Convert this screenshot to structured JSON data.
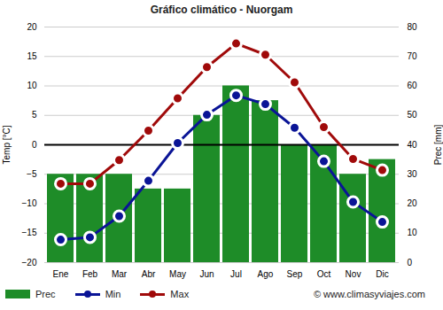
{
  "chart_data": {
    "type": "bar",
    "title": "Gráfico climático - Nuorgam",
    "categories": [
      "Ene",
      "Feb",
      "Mar",
      "Abr",
      "May",
      "Jun",
      "Jul",
      "Ago",
      "Sep",
      "Oct",
      "Nov",
      "Dic"
    ],
    "series": [
      {
        "name": "Prec",
        "type": "bar",
        "axis": "y2",
        "color": "#1e8c28",
        "values": [
          30,
          30,
          30,
          25,
          25,
          50,
          60,
          55,
          40,
          40,
          30,
          35
        ]
      },
      {
        "name": "Min",
        "type": "line",
        "marker": "circle",
        "color": "#0a1496",
        "values": [
          -16.1,
          -15.7,
          -12.1,
          -6.1,
          0.3,
          5.1,
          8.4,
          6.9,
          2.9,
          -2.8,
          -9.7,
          -13.1
        ]
      },
      {
        "name": "Max",
        "type": "line",
        "marker": "circle",
        "color": "#a00a0a",
        "values": [
          -6.6,
          -6.6,
          -2.6,
          2.4,
          7.9,
          13.2,
          17.2,
          15.3,
          10.6,
          3.0,
          -2.4,
          -4.3
        ]
      }
    ],
    "ylabel": "Temp [°C]",
    "y2label": "Prec [mm]",
    "ylim": [
      -20,
      20
    ],
    "yticks": [
      -20,
      -15,
      -10,
      -5,
      0,
      5,
      10,
      15,
      20
    ],
    "y2lim": [
      0,
      80
    ],
    "y2ticks": [
      0,
      10,
      20,
      30,
      40,
      50,
      60,
      70,
      80
    ],
    "grid": true,
    "legend": "bottom",
    "annotations": [
      "© www.climasyviajes.com"
    ]
  }
}
